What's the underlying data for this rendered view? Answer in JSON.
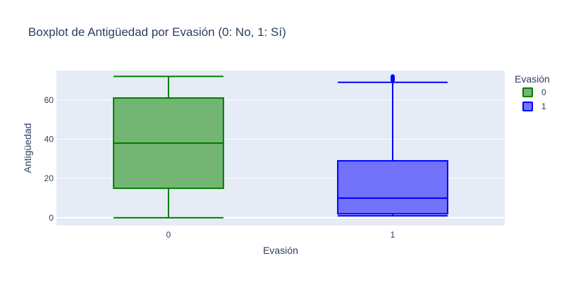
{
  "chart_data": {
    "type": "box",
    "title": "Boxplot de Antigüedad por Evasión (0: No, 1: Sí)",
    "xlabel": "Evasión",
    "ylabel": "Antigüedad",
    "ylim": [
      -4,
      75
    ],
    "yticks": [
      0,
      20,
      40,
      60
    ],
    "categories": [
      "0",
      "1"
    ],
    "legend": {
      "title": "Evasión",
      "position": "top-right"
    },
    "grid": true,
    "series": [
      {
        "name": "0",
        "color": "#008000",
        "fill": "#73b573",
        "min": 0,
        "q1": 15,
        "median": 38,
        "q3": 61,
        "max": 72,
        "outliers": []
      },
      {
        "name": "1",
        "color": "#0000ff",
        "fill": "#7272fb",
        "min": 1,
        "q1": 2,
        "median": 10,
        "q3": 29,
        "max": 69,
        "outliers": [
          70,
          70.5,
          71,
          71.5,
          72
        ]
      }
    ]
  }
}
